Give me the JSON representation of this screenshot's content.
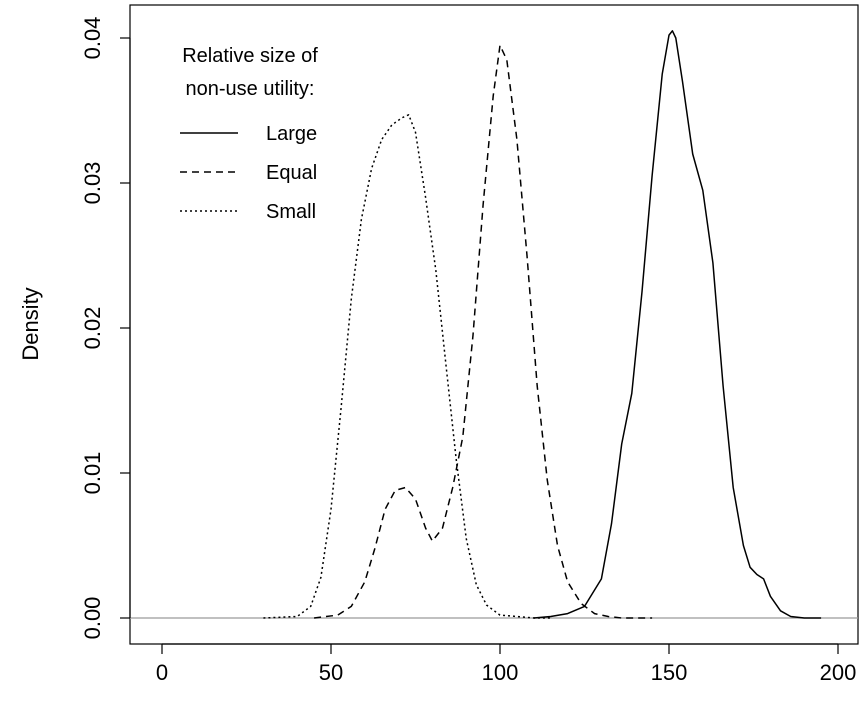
{
  "chart_data": {
    "type": "line",
    "title": "",
    "xlabel": "",
    "ylabel": "Density",
    "xlim": [
      0,
      200
    ],
    "ylim": [
      0,
      0.04
    ],
    "x_ticks": [
      0,
      50,
      100,
      150,
      200
    ],
    "x_tick_labels": [
      "0",
      "50",
      "100",
      "150",
      "200"
    ],
    "y_ticks": [
      0,
      0.01,
      0.02,
      0.03,
      0.04
    ],
    "y_tick_labels": [
      "0.00",
      "0.01",
      "0.02",
      "0.03",
      "0.04"
    ],
    "grid": false,
    "baseline": 0,
    "legend": {
      "title_lines": [
        "Relative size of",
        "non-use utility:"
      ],
      "position": "top-left"
    },
    "series": [
      {
        "name": "Large",
        "line_style": "solid",
        "x": [
          110,
          115,
          120,
          125,
          130,
          133,
          136,
          139,
          142,
          145,
          148,
          150,
          151,
          152,
          154,
          157,
          160,
          163,
          166,
          169,
          172,
          174,
          176,
          178,
          180,
          183,
          186,
          190,
          195
        ],
        "y": [
          0,
          0.0001,
          0.0003,
          0.0008,
          0.0027,
          0.0065,
          0.012,
          0.0155,
          0.0225,
          0.0305,
          0.0375,
          0.0402,
          0.0405,
          0.04,
          0.037,
          0.032,
          0.0295,
          0.0245,
          0.016,
          0.009,
          0.005,
          0.0035,
          0.003,
          0.0027,
          0.0015,
          0.0005,
          0.0001,
          0,
          0
        ]
      },
      {
        "name": "Equal",
        "line_style": "dashed",
        "x": [
          45,
          52,
          56,
          60,
          63,
          66,
          69,
          72,
          75,
          78,
          80,
          83,
          86,
          89,
          92,
          95,
          98,
          100,
          102,
          105,
          108,
          111,
          114,
          117,
          120,
          124,
          128,
          132,
          136,
          140,
          145
        ],
        "y": [
          0,
          0.0002,
          0.0008,
          0.0025,
          0.0048,
          0.0075,
          0.0088,
          0.009,
          0.0082,
          0.0062,
          0.0053,
          0.0062,
          0.009,
          0.0125,
          0.0195,
          0.0285,
          0.036,
          0.0395,
          0.0385,
          0.033,
          0.025,
          0.016,
          0.0095,
          0.005,
          0.0025,
          0.001,
          0.0003,
          0.0001,
          0,
          0,
          0
        ]
      },
      {
        "name": "Small",
        "line_style": "dotted",
        "x": [
          30,
          40,
          44,
          47,
          50,
          53,
          56,
          59,
          62,
          65,
          68,
          71,
          73,
          75,
          78,
          81,
          84,
          87,
          90,
          93,
          96,
          100,
          105,
          110,
          115
        ],
        "y": [
          0,
          0.0001,
          0.0008,
          0.0028,
          0.0075,
          0.0145,
          0.022,
          0.0275,
          0.031,
          0.033,
          0.034,
          0.0345,
          0.0347,
          0.0335,
          0.029,
          0.024,
          0.0175,
          0.011,
          0.0055,
          0.0023,
          0.0009,
          0.0002,
          0.0001,
          0,
          0
        ]
      }
    ]
  }
}
